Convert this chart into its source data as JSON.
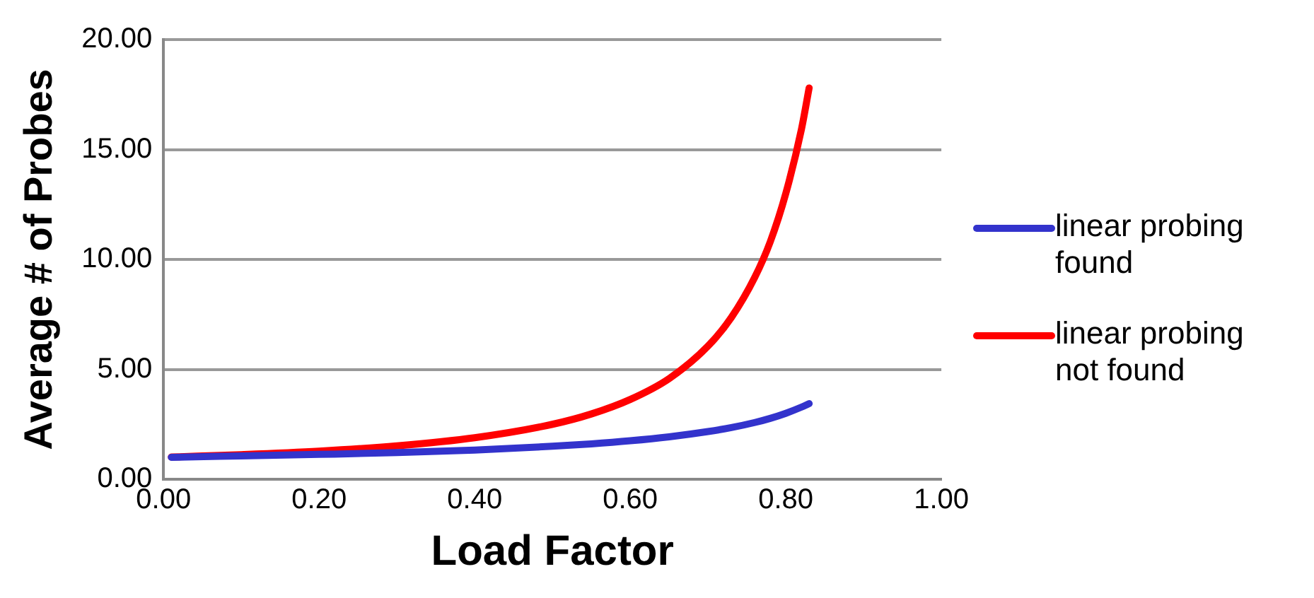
{
  "chart_data": {
    "type": "line",
    "xlabel": "Load Factor",
    "ylabel": "Average # of Probes",
    "x": [
      0.01,
      0.1,
      0.2,
      0.3,
      0.4,
      0.5,
      0.55,
      0.6,
      0.65,
      0.7,
      0.73,
      0.76,
      0.78,
      0.8,
      0.82,
      0.83
    ],
    "series": [
      {
        "name": "linear probing found",
        "color": "#3333cc",
        "values": [
          1.0,
          1.06,
          1.13,
          1.21,
          1.33,
          1.5,
          1.61,
          1.75,
          1.93,
          2.17,
          2.35,
          2.58,
          2.77,
          3.0,
          3.28,
          3.44
        ]
      },
      {
        "name": "linear probing not found",
        "color": "#ff0000",
        "values": [
          1.01,
          1.12,
          1.28,
          1.52,
          1.89,
          2.5,
          2.97,
          3.63,
          4.58,
          6.06,
          7.36,
          9.18,
          10.8,
          13.0,
          15.9,
          17.8
        ]
      }
    ],
    "xlim": [
      0,
      1
    ],
    "xticks": [
      {
        "value": 0,
        "label": "0.00"
      },
      {
        "value": 0.2,
        "label": "0.20"
      },
      {
        "value": 0.4,
        "label": "0.40"
      },
      {
        "value": 0.6,
        "label": "0.60"
      },
      {
        "value": 0.8,
        "label": "0.80"
      },
      {
        "value": 1,
        "label": "1.00"
      }
    ],
    "ylim": [
      0,
      20
    ],
    "yticks": [
      {
        "value": 0,
        "label": "0.00"
      },
      {
        "value": 5,
        "label": "5.00"
      },
      {
        "value": 10,
        "label": "10.00"
      },
      {
        "value": 15,
        "label": "15.00"
      },
      {
        "value": 20,
        "label": "20.00"
      }
    ],
    "grid": "y",
    "legend": "right",
    "marker": "none",
    "line_style": "solid"
  }
}
